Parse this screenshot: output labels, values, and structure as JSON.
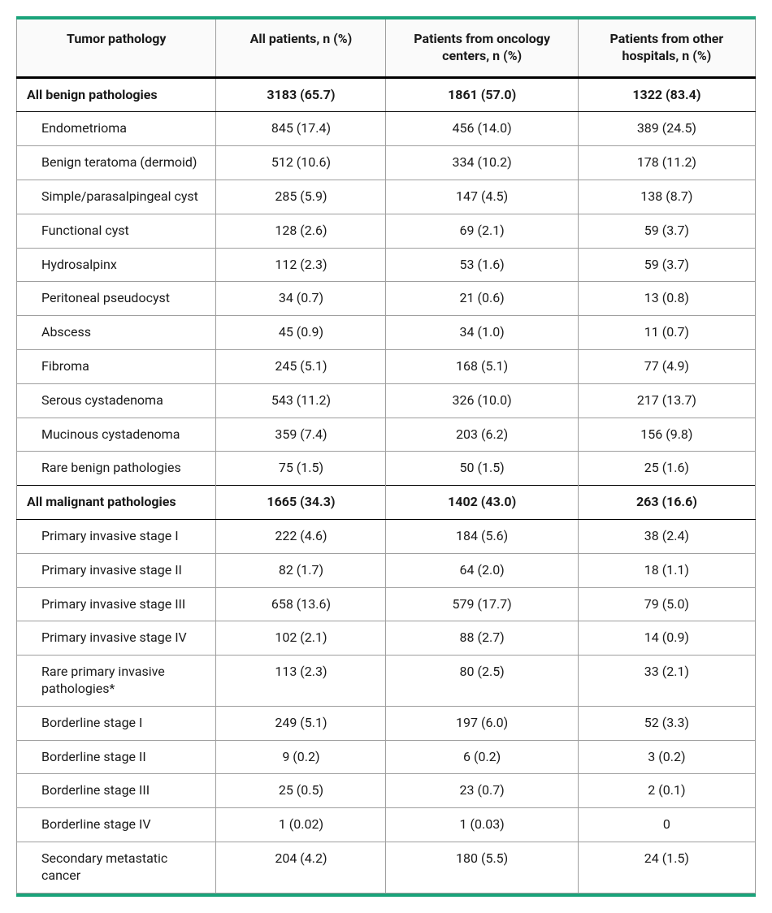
{
  "table": {
    "type": "table",
    "accent_color": "#1aa37a",
    "border_color": "#9e9e9e",
    "header_divider_color": "#000000",
    "background_color": "#ffffff",
    "columns": [
      {
        "label": "Tumor pathology",
        "align": "left",
        "width_pct": 27
      },
      {
        "label": "All patients, n (%)",
        "align": "center",
        "width_pct": 23
      },
      {
        "label": "Patients from oncology centers, n (%)",
        "align": "center",
        "width_pct": 26
      },
      {
        "label": "Patients from other hospitals, n (%)",
        "align": "center",
        "width_pct": 24
      }
    ],
    "rows": [
      {
        "type": "section",
        "cells": [
          "All benign pathologies",
          "3183 (65.7)",
          "1861 (57.0)",
          "1322 (83.4)"
        ]
      },
      {
        "type": "child",
        "cells": [
          "Endometrioma",
          "845 (17.4)",
          "456 (14.0)",
          "389 (24.5)"
        ]
      },
      {
        "type": "child",
        "cells": [
          "Benign teratoma (dermoid)",
          "512 (10.6)",
          "334 (10.2)",
          "178 (11.2)"
        ]
      },
      {
        "type": "child",
        "cells": [
          "Simple/parasalpingeal cyst",
          "285 (5.9)",
          "147 (4.5)",
          "138 (8.7)"
        ]
      },
      {
        "type": "child",
        "cells": [
          "Functional cyst",
          "128 (2.6)",
          "69 (2.1)",
          "59 (3.7)"
        ]
      },
      {
        "type": "child",
        "cells": [
          "Hydrosalpinx",
          "112 (2.3)",
          "53 (1.6)",
          "59 (3.7)"
        ]
      },
      {
        "type": "child",
        "cells": [
          "Peritoneal pseudocyst",
          "34 (0.7)",
          "21 (0.6)",
          "13 (0.8)"
        ]
      },
      {
        "type": "child",
        "cells": [
          "Abscess",
          "45 (0.9)",
          "34 (1.0)",
          "11 (0.7)"
        ]
      },
      {
        "type": "child",
        "cells": [
          "Fibroma",
          "245 (5.1)",
          "168 (5.1)",
          "77 (4.9)"
        ]
      },
      {
        "type": "child",
        "cells": [
          "Serous cystadenoma",
          "543 (11.2)",
          "326 (10.0)",
          "217 (13.7)"
        ]
      },
      {
        "type": "child",
        "cells": [
          "Mucinous cystadenoma",
          "359 (7.4)",
          "203 (6.2)",
          "156 (9.8)"
        ]
      },
      {
        "type": "child",
        "cells": [
          "Rare benign pathologies",
          "75 (1.5)",
          "50 (1.5)",
          "25 (1.6)"
        ]
      },
      {
        "type": "section",
        "cells": [
          "All malignant pathologies",
          "1665 (34.3)",
          "1402 (43.0)",
          "263 (16.6)"
        ]
      },
      {
        "type": "child",
        "cells": [
          "Primary invasive stage I",
          "222 (4.6)",
          "184 (5.6)",
          "38 (2.4)"
        ]
      },
      {
        "type": "child",
        "cells": [
          "Primary invasive stage II",
          "82 (1.7)",
          "64 (2.0)",
          "18 (1.1)"
        ]
      },
      {
        "type": "child",
        "cells": [
          "Primary invasive stage III",
          "658 (13.6)",
          "579 (17.7)",
          "79 (5.0)"
        ]
      },
      {
        "type": "child",
        "cells": [
          "Primary invasive stage IV",
          "102 (2.1)",
          "88 (2.7)",
          "14 (0.9)"
        ]
      },
      {
        "type": "child",
        "cells": [
          "Rare primary invasive pathologies*",
          "113 (2.3)",
          "80 (2.5)",
          "33 (2.1)"
        ]
      },
      {
        "type": "child",
        "cells": [
          "Borderline stage I",
          "249 (5.1)",
          "197 (6.0)",
          "52 (3.3)"
        ]
      },
      {
        "type": "child",
        "cells": [
          "Borderline stage II",
          "9 (0.2)",
          "6 (0.2)",
          "3 (0.2)"
        ]
      },
      {
        "type": "child",
        "cells": [
          "Borderline stage III",
          "25 (0.5)",
          "23 (0.7)",
          "2 (0.1)"
        ]
      },
      {
        "type": "child",
        "cells": [
          "Borderline stage IV",
          "1 (0.02)",
          "1 (0.03)",
          "0"
        ]
      },
      {
        "type": "child",
        "cells": [
          "Secondary metastatic cancer",
          "204 (4.2)",
          "180 (5.5)",
          "24 (1.5)"
        ]
      }
    ]
  }
}
